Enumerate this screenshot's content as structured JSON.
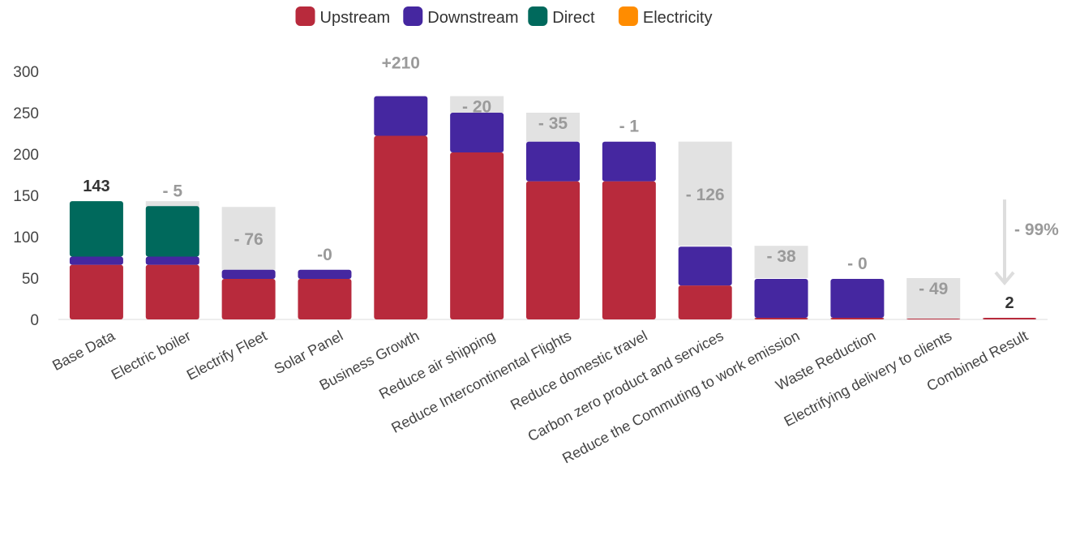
{
  "chart_data": {
    "type": "bar",
    "title": "",
    "xlabel": "",
    "ylabel": "",
    "ylim": [
      0,
      300
    ],
    "yticks": [
      0,
      50,
      100,
      150,
      200,
      250,
      300
    ],
    "grid": false,
    "legend_position": "top-center",
    "categories": [
      "Base Data",
      "Electric boiler",
      "Electrify Fleet",
      "Solar Panel",
      "Business Growth",
      "Reduce air shipping",
      "Reduce Intercontinental Flights",
      "Reduce domestic travel",
      "Carbon zero product and services",
      "Reduce the Commuting to work emission",
      "Waste Reduction",
      "Electrifying delivery to clients",
      "Combined Result"
    ],
    "series": [
      {
        "name": "Upstream",
        "color": "#b82a3c",
        "values": [
          66,
          66,
          49,
          49,
          222,
          202,
          167,
          167,
          41,
          2,
          2,
          1,
          2
        ]
      },
      {
        "name": "Downstream",
        "color": "#4527a0",
        "values": [
          10,
          10,
          11,
          11,
          48,
          48,
          48,
          48,
          47,
          47,
          47,
          0,
          0
        ]
      },
      {
        "name": "Direct",
        "color": "#00695c",
        "values": [
          67,
          61,
          0,
          0,
          0,
          0,
          0,
          0,
          0,
          0,
          0,
          0,
          0
        ]
      },
      {
        "name": "Electricity",
        "color": "#ff8c00",
        "values": [
          0,
          0,
          0,
          0,
          0,
          0,
          0,
          0,
          0,
          0,
          0,
          0,
          0
        ]
      }
    ],
    "change_bars": [
      null,
      [
        136,
        143
      ],
      [
        60,
        136
      ],
      [
        60,
        60
      ],
      null,
      [
        250,
        270
      ],
      [
        215,
        250
      ],
      [
        215,
        215
      ],
      [
        89,
        215
      ],
      [
        50,
        89
      ],
      [
        50,
        50
      ],
      [
        1,
        50
      ],
      null
    ],
    "bar_labels": [
      "143",
      "- 5",
      "- 76",
      "-0",
      "+210",
      "- 20",
      "- 35",
      "- 1",
      "- 126",
      "- 38",
      "- 0",
      "- 49",
      "2"
    ],
    "annotation": {
      "label": "- 99%",
      "from": 143,
      "to": 2
    }
  }
}
